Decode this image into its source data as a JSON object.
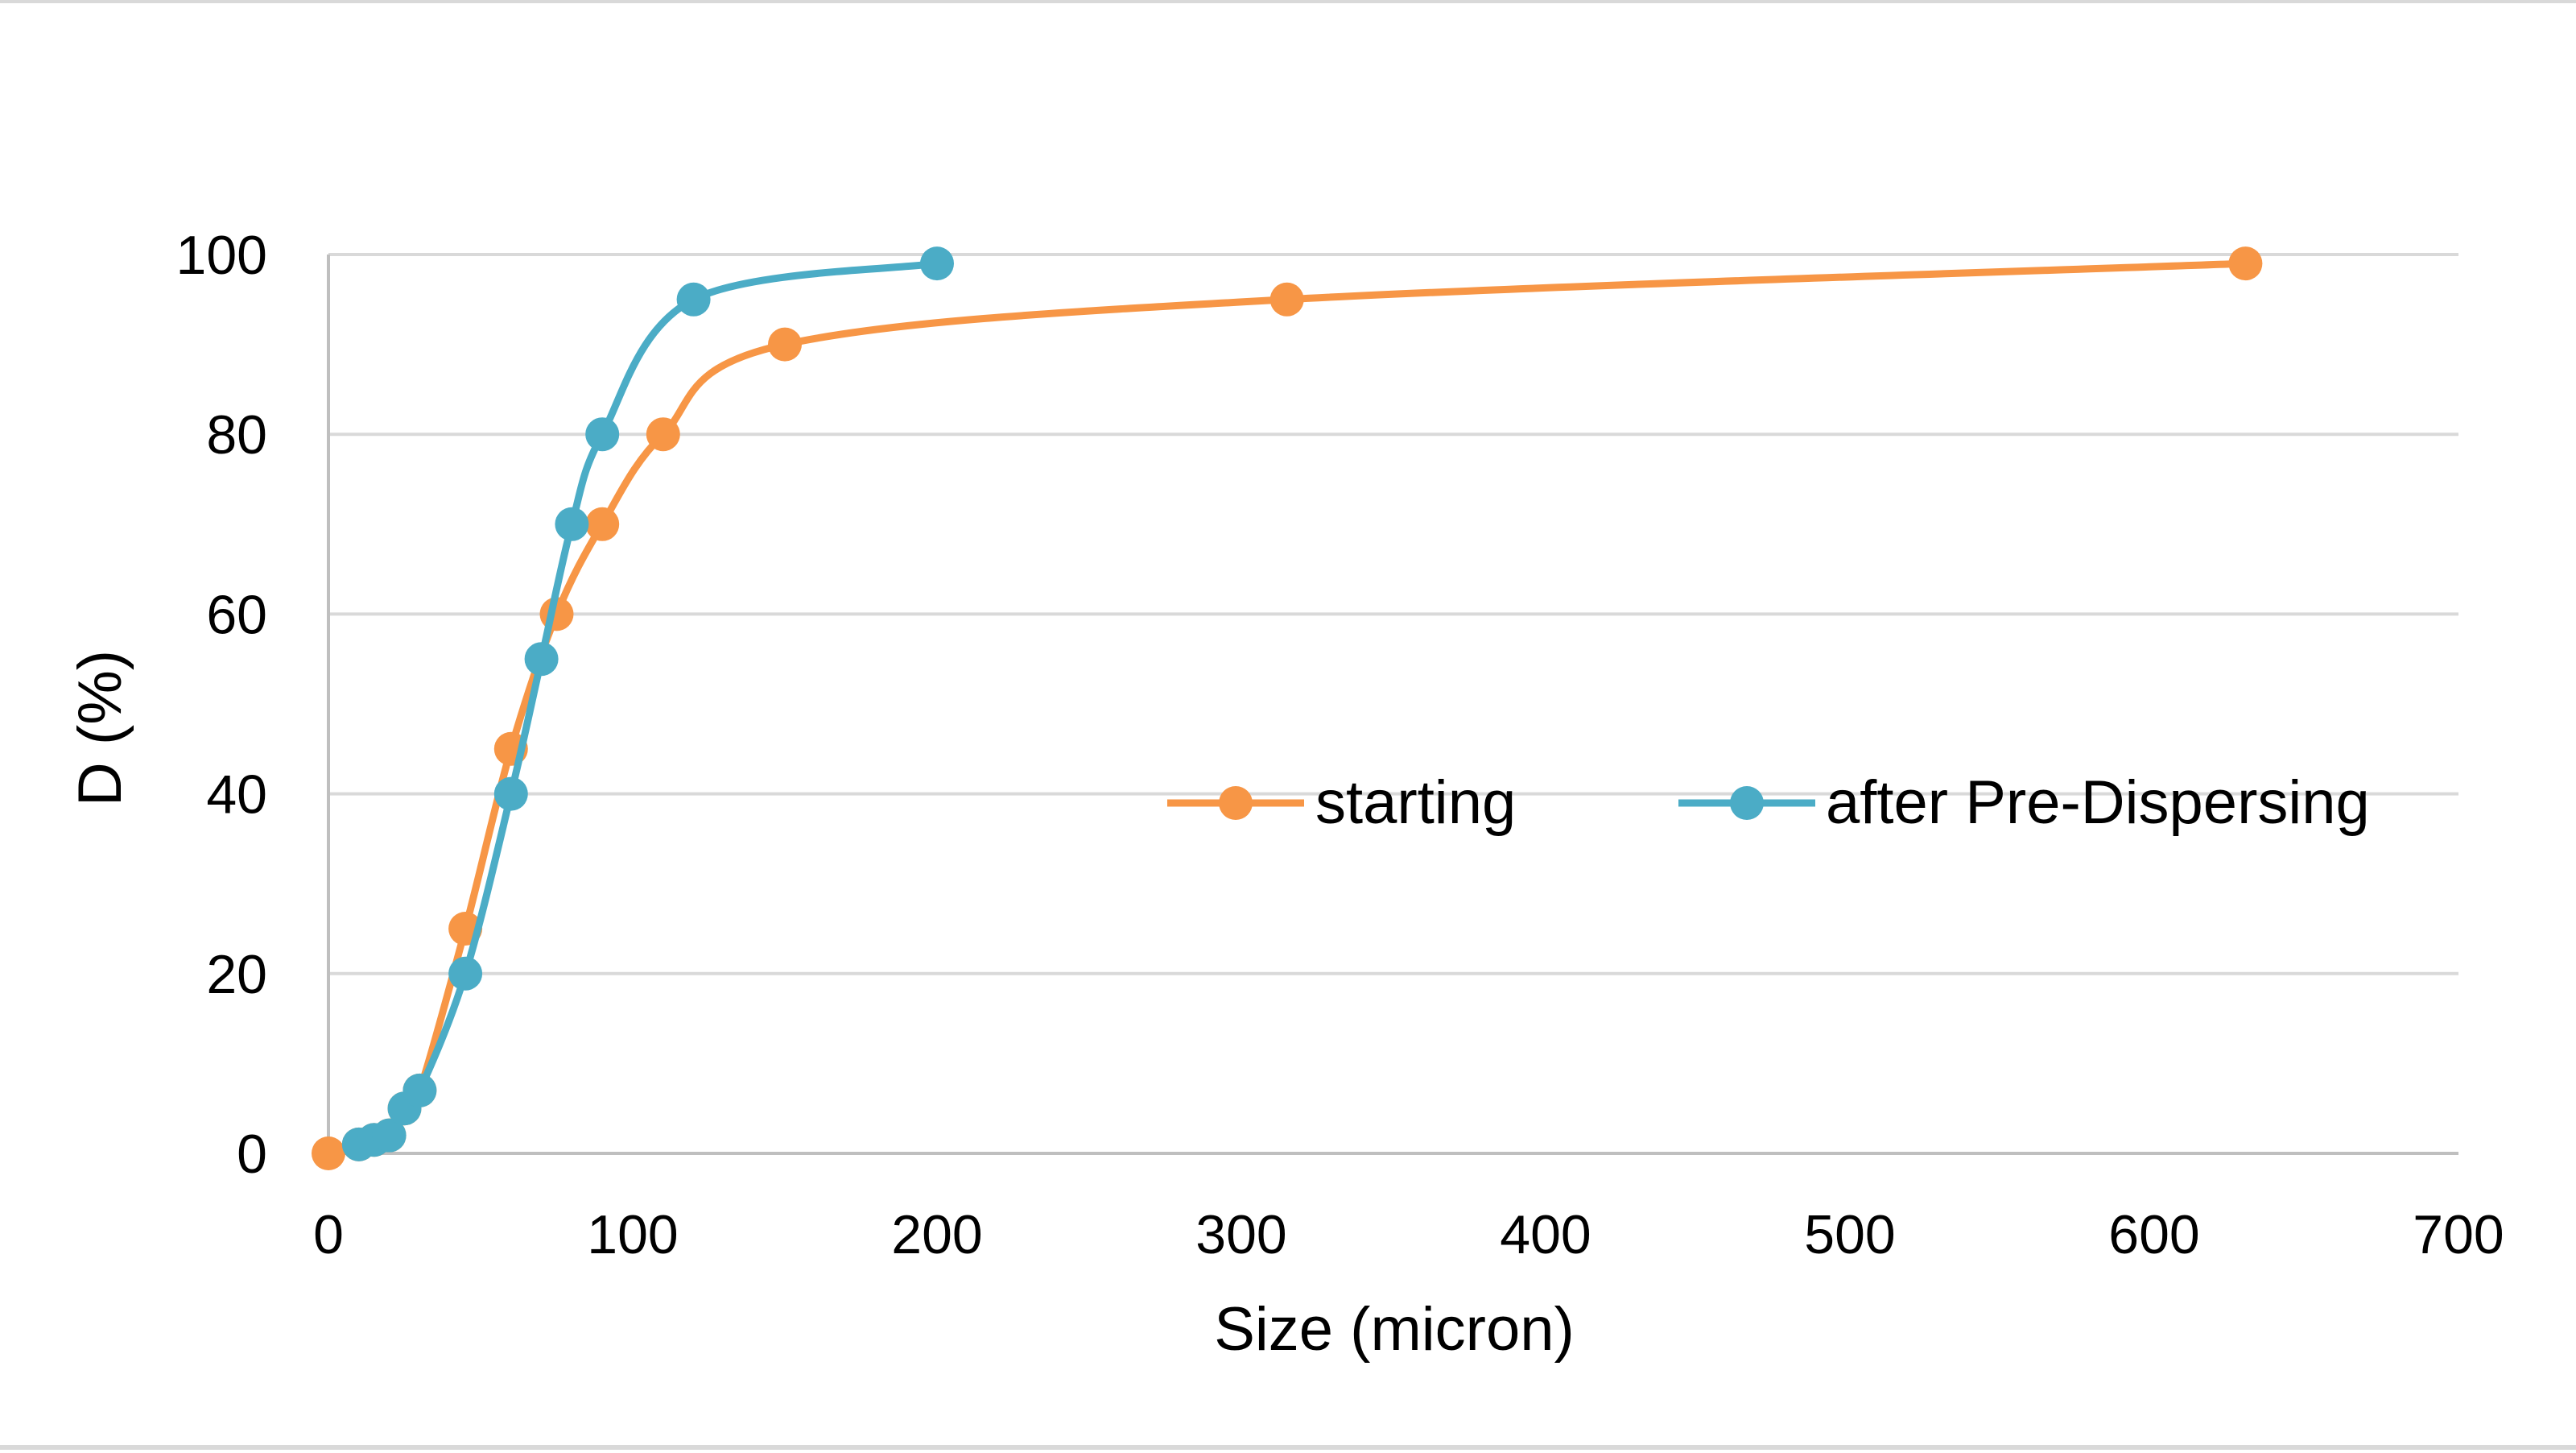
{
  "chart_data": {
    "type": "line",
    "title": "",
    "xlabel": "Size (micron)",
    "ylabel": "D (%)",
    "xlim": [
      0,
      700
    ],
    "ylim": [
      0,
      100
    ],
    "x_ticks": [
      "0",
      "100",
      "200",
      "300",
      "400",
      "500",
      "600",
      "700"
    ],
    "y_ticks": [
      "0",
      "20",
      "40",
      "60",
      "80",
      "100"
    ],
    "grid": "horizontal",
    "smooth": true,
    "legend_position": "center-right",
    "series": [
      {
        "name": "starting",
        "color": "#f79646",
        "x": [
          0,
          10,
          15,
          20,
          25,
          30,
          45,
          60,
          75,
          90,
          110,
          150,
          315,
          630
        ],
        "y": [
          0,
          1,
          1.5,
          2,
          5,
          7,
          25,
          45,
          60,
          70,
          80,
          90,
          95,
          99
        ]
      },
      {
        "name": "after Pre-Dispersing",
        "color": "#4bacc6",
        "x": [
          10,
          15,
          20,
          25,
          30,
          45,
          60,
          70,
          80,
          90,
          120,
          200
        ],
        "y": [
          1,
          1.5,
          2,
          5,
          7,
          20,
          40,
          55,
          70,
          80,
          95,
          99
        ]
      }
    ]
  }
}
